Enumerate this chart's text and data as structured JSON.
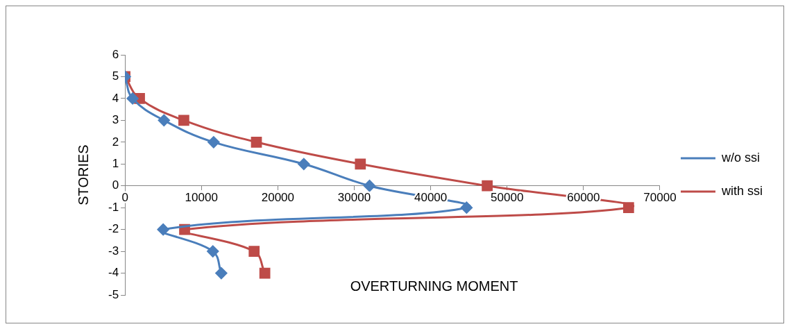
{
  "chart_data": {
    "type": "line",
    "xlabel": "OVERTURNING MOMENT",
    "ylabel": "STORIES",
    "series": [
      {
        "name": "w/o ssi",
        "color": "#4a7ebb",
        "marker": "diamond",
        "x": [
          0,
          1000,
          5100,
          11600,
          23400,
          32000,
          44700,
          5000,
          11500,
          12600
        ],
        "values": [
          5,
          4,
          3,
          2,
          1,
          0,
          -1,
          -2,
          -3,
          -4
        ]
      },
      {
        "name": "with ssi",
        "color": "#be4b48",
        "marker": "square",
        "x": [
          0,
          1900,
          7700,
          17200,
          30800,
          47400,
          65900,
          7800,
          16900,
          18300
        ],
        "values": [
          5,
          4,
          3,
          2,
          1,
          0,
          -1,
          -2,
          -3,
          -4
        ]
      }
    ],
    "xlim": [
      0,
      70000
    ],
    "xticks": [
      0,
      10000,
      20000,
      30000,
      40000,
      50000,
      60000,
      70000
    ],
    "ylim": [
      -5,
      6
    ],
    "yticks": [
      -5,
      -4,
      -3,
      -2,
      -1,
      0,
      1,
      2,
      3,
      4,
      5,
      6
    ],
    "grid": false,
    "legend": "right"
  }
}
